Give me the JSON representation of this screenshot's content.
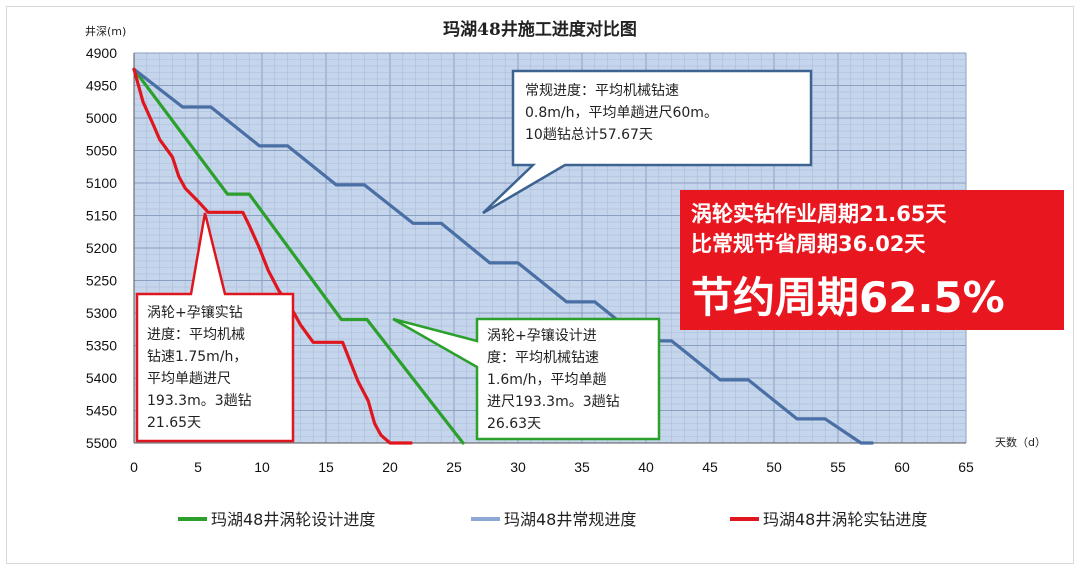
{
  "chart_data": {
    "type": "line",
    "title": "玛湖48井施工进度对比图",
    "ylabel": "井深(m)",
    "xlabel": "天数（d）",
    "xlim": [
      0,
      65
    ],
    "ylim": [
      5500,
      4900
    ],
    "y_inverted": true,
    "x_ticks": [
      "0",
      "5",
      "10",
      "15",
      "20",
      "25",
      "30",
      "35",
      "40",
      "45",
      "50",
      "55",
      "60",
      "65"
    ],
    "y_ticks": [
      "4900",
      "4950",
      "5000",
      "5050",
      "5100",
      "5150",
      "5200",
      "5250",
      "5300",
      "5350",
      "5400",
      "5450",
      "5500"
    ],
    "grid": true,
    "legend_position": "bottom",
    "series": [
      {
        "name": "玛湖48井涡轮设计进度",
        "color": "#2ca02c",
        "points": [
          [
            0,
            4925
          ],
          [
            7.3,
            5117
          ],
          [
            9,
            5117
          ],
          [
            16.2,
            5310
          ],
          [
            18.2,
            5310
          ],
          [
            25.7,
            5500
          ]
        ]
      },
      {
        "name": "玛湖48井常规进度",
        "color": "#4a6fa5",
        "points": [
          [
            0,
            4925
          ],
          [
            3.8,
            4983
          ],
          [
            6,
            4983
          ],
          [
            9.8,
            5043
          ],
          [
            12,
            5043
          ],
          [
            15.8,
            5103
          ],
          [
            18,
            5103
          ],
          [
            21.8,
            5162
          ],
          [
            24,
            5162
          ],
          [
            27.8,
            5223
          ],
          [
            30,
            5223
          ],
          [
            33.8,
            5283
          ],
          [
            36,
            5283
          ],
          [
            39.8,
            5343
          ],
          [
            42,
            5343
          ],
          [
            45.8,
            5403
          ],
          [
            48,
            5403
          ],
          [
            51.8,
            5463
          ],
          [
            54,
            5463
          ],
          [
            56.8,
            5500
          ],
          [
            57.67,
            5500
          ]
        ]
      },
      {
        "name": "玛湖48井涡轮实钻进度",
        "color": "#e0161e",
        "points": [
          [
            0,
            4925
          ],
          [
            0.7,
            4975
          ],
          [
            1.5,
            5010
          ],
          [
            2,
            5033
          ],
          [
            3,
            5060
          ],
          [
            3.5,
            5090
          ],
          [
            4,
            5108
          ],
          [
            5,
            5128
          ],
          [
            5.8,
            5145
          ],
          [
            8.5,
            5145
          ],
          [
            9,
            5165
          ],
          [
            9.8,
            5200
          ],
          [
            10.5,
            5235
          ],
          [
            11.3,
            5265
          ],
          [
            12,
            5285
          ],
          [
            12.5,
            5300
          ],
          [
            13,
            5318
          ],
          [
            14,
            5345
          ],
          [
            16.3,
            5345
          ],
          [
            16.8,
            5370
          ],
          [
            17.5,
            5405
          ],
          [
            18.3,
            5435
          ],
          [
            18.8,
            5470
          ],
          [
            19.3,
            5488
          ],
          [
            20,
            5500
          ],
          [
            21.65,
            5500
          ]
        ]
      }
    ]
  },
  "annotations": {
    "normal": {
      "lines": [
        "常规进度：平均机械钻速",
        "0.8m/h，平均单趟进尺60m。",
        "10趟钻总计57.67天"
      ],
      "color": "#3d6491"
    },
    "actual": {
      "lines": [
        "涡轮+孕镶实钻",
        "进度：平均机械",
        "钻速1.75m/h，",
        "平均单趟进尺",
        "193.3m。3趟钻",
        "21.65天"
      ],
      "color": "#e0161e"
    },
    "design": {
      "lines": [
        "涡轮+孕镶设计进",
        "度：平均机械钻速",
        "1.6m/h，平均单趟",
        "进尺193.3m。3趟钻",
        "26.63天"
      ],
      "color": "#2ca02c"
    }
  },
  "highlight": {
    "line1": "涡轮实钻作业周期21.65天",
    "line2": "比常规节省周期36.02天",
    "line3": "节约周期62.5%",
    "bg_color": "#e8161e"
  }
}
